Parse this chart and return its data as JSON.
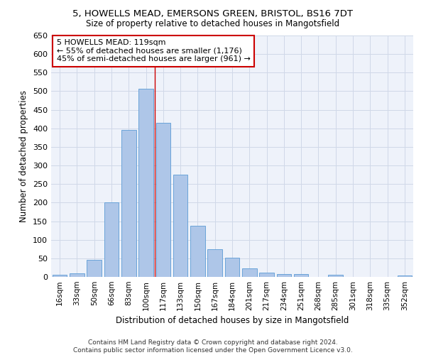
{
  "title1": "5, HOWELLS MEAD, EMERSONS GREEN, BRISTOL, BS16 7DT",
  "title2": "Size of property relative to detached houses in Mangotsfield",
  "xlabel": "Distribution of detached houses by size in Mangotsfield",
  "ylabel": "Number of detached properties",
  "categories": [
    "16sqm",
    "33sqm",
    "50sqm",
    "66sqm",
    "83sqm",
    "100sqm",
    "117sqm",
    "133sqm",
    "150sqm",
    "167sqm",
    "184sqm",
    "201sqm",
    "217sqm",
    "234sqm",
    "251sqm",
    "268sqm",
    "285sqm",
    "301sqm",
    "318sqm",
    "335sqm",
    "352sqm"
  ],
  "values": [
    5,
    10,
    45,
    200,
    395,
    507,
    415,
    275,
    138,
    75,
    52,
    22,
    12,
    8,
    8,
    0,
    5,
    0,
    0,
    0,
    4
  ],
  "bar_color": "#aec6e8",
  "bar_edge_color": "#5b9bd5",
  "grid_color": "#d0d8e8",
  "background_color": "#eef2fa",
  "vline_color": "#cc0000",
  "annotation_box_text": "5 HOWELLS MEAD: 119sqm\n← 55% of detached houses are smaller (1,176)\n45% of semi-detached houses are larger (961) →",
  "annotation_box_color": "#ffffff",
  "annotation_box_edge_color": "#cc0000",
  "footer1": "Contains HM Land Registry data © Crown copyright and database right 2024.",
  "footer2": "Contains public sector information licensed under the Open Government Licence v3.0.",
  "ylim": [
    0,
    650
  ],
  "yticks": [
    0,
    50,
    100,
    150,
    200,
    250,
    300,
    350,
    400,
    450,
    500,
    550,
    600,
    650
  ]
}
